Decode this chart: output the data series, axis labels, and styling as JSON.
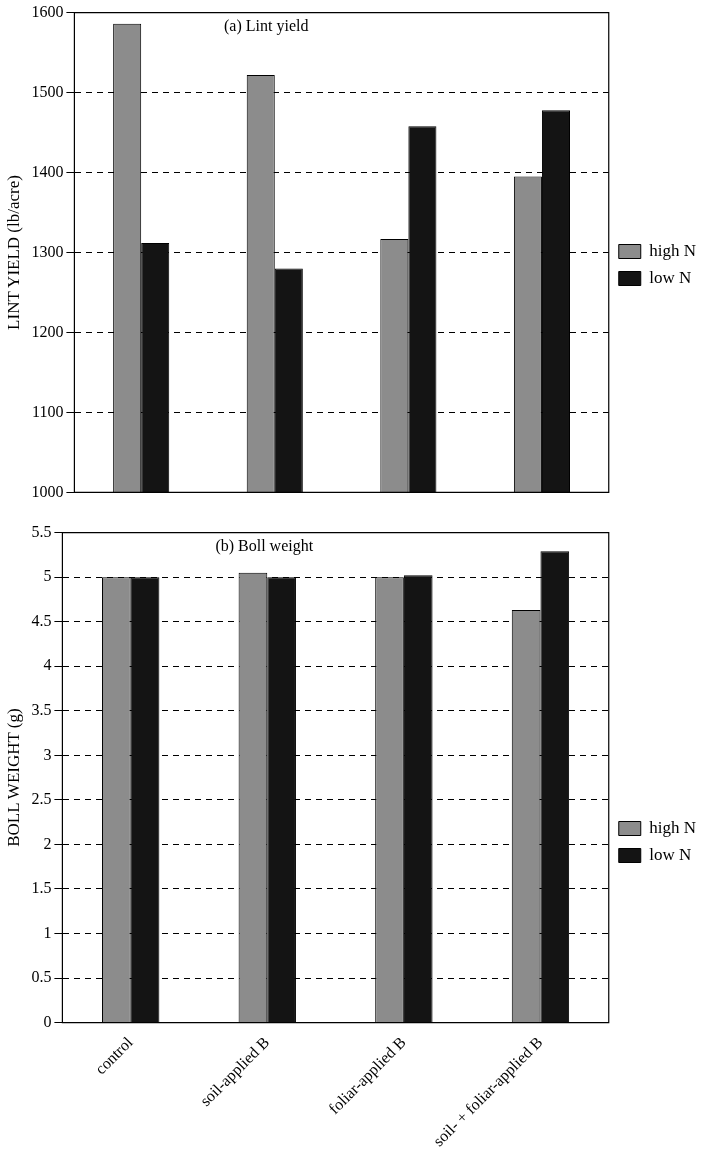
{
  "chart_data": [
    {
      "type": "bar",
      "title": "(a) Lint yield",
      "ylabel": "LINT YIELD (lb/acre)",
      "categories": [
        null,
        null,
        null,
        null
      ],
      "series": [
        {
          "name": "high N",
          "color": "#8c8c8c",
          "values": [
            1586,
            1522,
            1317,
            1395
          ]
        },
        {
          "name": "low N",
          "color": "#141414",
          "values": [
            1312,
            1280,
            1458,
            1478
          ]
        }
      ],
      "ylim": [
        1000,
        1600
      ],
      "yticks": [
        1000,
        1100,
        1200,
        1300,
        1400,
        1500,
        1600
      ],
      "grid": "y",
      "legend": "right"
    },
    {
      "type": "bar",
      "title": "(b) Boll weight",
      "ylabel": "BOLL WEIGHT (g)",
      "categories": [
        "control",
        "soil-applied B",
        "foliar-applied B",
        "soil- + foliar-applied B"
      ],
      "series": [
        {
          "name": "high N",
          "color": "#8c8c8c",
          "values": [
            5.0,
            5.05,
            5.0,
            4.63
          ]
        },
        {
          "name": "low N",
          "color": "#141414",
          "values": [
            5.0,
            5.0,
            5.02,
            5.29
          ]
        }
      ],
      "ylim": [
        0,
        5.5
      ],
      "yticks": [
        0,
        0.5,
        1,
        1.5,
        2,
        2.5,
        3,
        3.5,
        4,
        4.5,
        5,
        5.5
      ],
      "grid": "y",
      "legend": "right"
    }
  ]
}
